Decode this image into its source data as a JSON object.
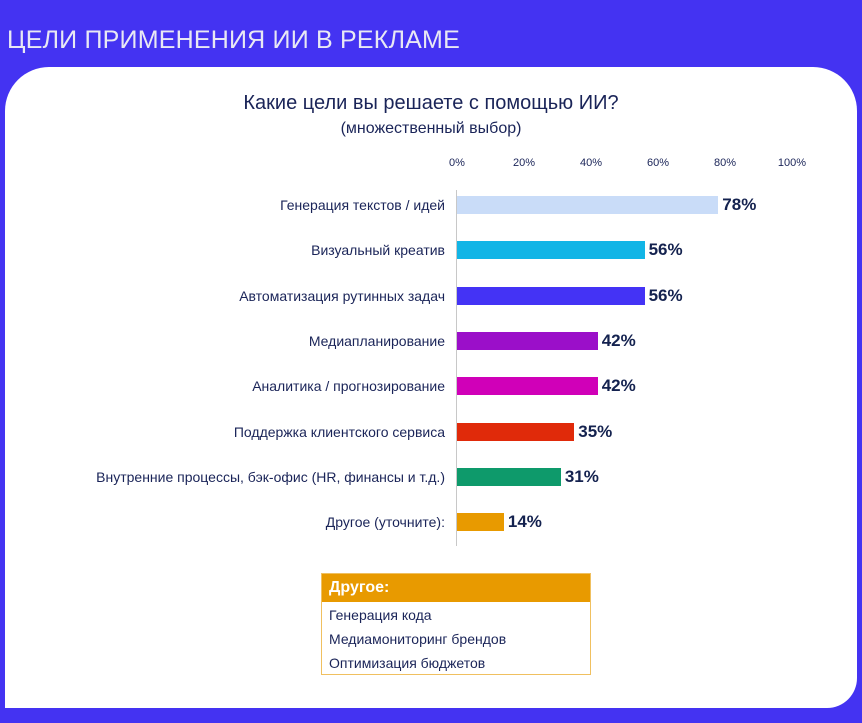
{
  "header": {
    "title": "ЦЕЛИ ПРИМЕНЕНИЯ ИИ В РЕКЛАМЕ"
  },
  "chart_data": {
    "type": "bar",
    "orientation": "horizontal",
    "title": "Какие цели вы решаете с помощью ИИ?",
    "subtitle": "(множественный выбор)",
    "xlim": [
      0,
      100
    ],
    "ticks": [
      "0%",
      "20%",
      "40%",
      "60%",
      "80%",
      "100%"
    ],
    "tick_values": [
      0,
      20,
      40,
      60,
      80,
      100
    ],
    "categories": [
      "Генерация текстов / идей",
      "Визуальный креатив",
      "Автоматизация рутинных задач",
      "Медиапланирование",
      "Аналитика / прогнозирование",
      "Поддержка клиентского сервиса",
      "Внутренние процессы, бэк-офис (HR, финансы и т.д.)",
      "Другое (уточните):"
    ],
    "values": [
      78,
      56,
      56,
      42,
      42,
      35,
      31,
      14
    ],
    "labels": [
      "78%",
      "56%",
      "56%",
      "42%",
      "42%",
      "35%",
      "31%",
      "14%"
    ],
    "colors": [
      "#c9dcf8",
      "#12b5e6",
      "#4433f5",
      "#9b0fc9",
      "#d000b8",
      "#e02a0a",
      "#0e9a6b",
      "#e89a00"
    ],
    "grid": false
  },
  "other_box": {
    "title": "Другое:",
    "items": [
      "Генерация кода",
      "Медиамониторинг брендов",
      "Оптимизация бюджетов"
    ]
  }
}
